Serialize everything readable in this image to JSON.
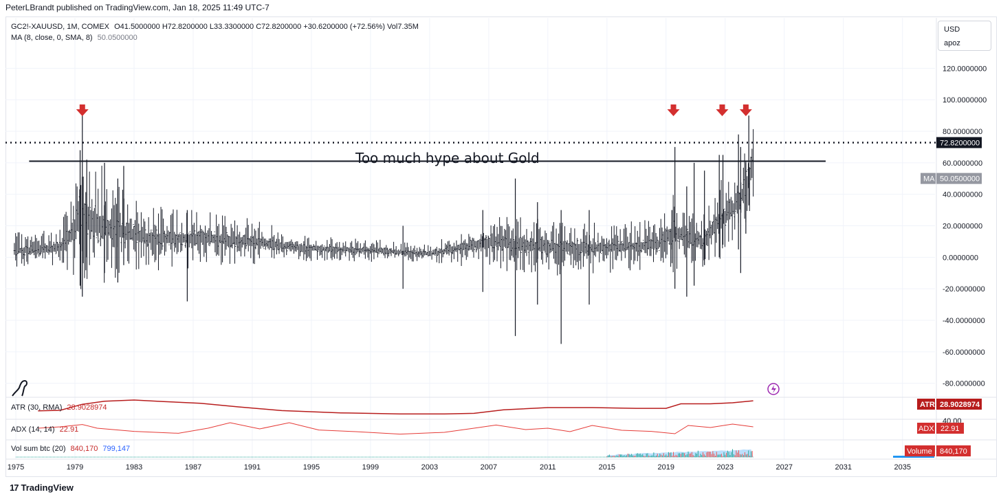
{
  "header": {
    "text": "PeterLBrandt published on TradingView.com, Jan 18, 2025 11:49 UTC-7"
  },
  "legend": {
    "symbol_line": "GC2!-XAUUSD, 1M, COMEX",
    "ohlc": "O41.5000000  H72.8200000  L33.3300000  C72.8200000  +30.6200000 (+72.56%)  Vol7.35M",
    "ma_label": "MA (8, close, 0, SMA, 8)",
    "ma_value": "50.0500000"
  },
  "scale_box": {
    "currency": "USD",
    "mode": "apoz"
  },
  "annotation": {
    "text": "Too much hype about Gold"
  },
  "price_tags": {
    "last": "72.8200000",
    "ma_tag": "MA",
    "ma": "50.0500000"
  },
  "indicators": {
    "atr": {
      "label": "ATR (30, RMA)",
      "value": "28.9028974",
      "tag": "ATR"
    },
    "adx": {
      "label": "ADX (14, 14)",
      "value": "22.91",
      "tag": "ADX",
      "axis_tick": "40.00"
    },
    "vol": {
      "label": "Vol sum btc (20)",
      "value1": "840,170",
      "value2": "799,147",
      "tag": "Volume",
      "tag_value": "840,170"
    }
  },
  "footer": {
    "brand": "TradingView",
    "logo": "17"
  },
  "colors": {
    "candle": "#131722",
    "arrow": "#d32f2f",
    "atr": "#b71c1c",
    "adx": "#e53935",
    "vol_blue": "#2196f3",
    "tag_red": "#d32f2f",
    "ma_tag_bg": "#9598a1"
  },
  "chart_data": {
    "type": "bar",
    "x_unit": "year",
    "x_range": [
      1974.3,
      2037.2
    ],
    "y_range": [
      -88,
      152
    ],
    "y_ticks": [
      "120.0000000",
      "100.0000000",
      "80.0000000",
      "60.0000000",
      "40.0000000",
      "20.0000000",
      "0.0000000",
      "-20.0000000",
      "-40.0000000",
      "-60.0000000",
      "-80.0000000"
    ],
    "y_tick_values": [
      120,
      100,
      80,
      60,
      40,
      20,
      0,
      -20,
      -40,
      -60,
      -80
    ],
    "x_ticks": [
      "1975",
      "1979",
      "1983",
      "1987",
      "1991",
      "1995",
      "1999",
      "2003",
      "2007",
      "2011",
      "2015",
      "2019",
      "2023",
      "2027",
      "2031",
      "2035"
    ],
    "x_tick_values": [
      1975,
      1979,
      1983,
      1987,
      1991,
      1995,
      1999,
      2003,
      2007,
      2011,
      2015,
      2019,
      2023,
      2027,
      2031,
      2035
    ],
    "last_close": 72.82,
    "ma_value": 50.05,
    "horizontal_line": {
      "value": 61,
      "x_start": 1975.9,
      "x_end": 2029.8
    },
    "arrows_at": [
      1979.5,
      2019.5,
      2022.8,
      2024.4
    ],
    "anchors": [
      {
        "t": 1974.9,
        "c": 4,
        "a": 10
      },
      {
        "t": 1978.0,
        "c": 6,
        "a": 12
      },
      {
        "t": 1979.0,
        "c": 18,
        "a": 30
      },
      {
        "t": 1979.4,
        "c": 30,
        "a": 45
      },
      {
        "t": 1980.3,
        "c": 22,
        "a": 38
      },
      {
        "t": 1981.5,
        "c": 18,
        "a": 28
      },
      {
        "t": 1984.0,
        "c": 12,
        "a": 18
      },
      {
        "t": 1988.0,
        "c": 12,
        "a": 16
      },
      {
        "t": 1991.0,
        "c": 10,
        "a": 14
      },
      {
        "t": 1994.0,
        "c": 6,
        "a": 8
      },
      {
        "t": 2000.0,
        "c": 4,
        "a": 6
      },
      {
        "t": 2003.0,
        "c": 2,
        "a": 5
      },
      {
        "t": 2005.0,
        "c": 6,
        "a": 10
      },
      {
        "t": 2007.0,
        "c": 10,
        "a": 14
      },
      {
        "t": 2009.0,
        "c": 8,
        "a": 16
      },
      {
        "t": 2012.0,
        "c": 6,
        "a": 16
      },
      {
        "t": 2015.0,
        "c": 6,
        "a": 14
      },
      {
        "t": 2018.5,
        "c": 8,
        "a": 14
      },
      {
        "t": 2019.5,
        "c": 16,
        "a": 24
      },
      {
        "t": 2021.5,
        "c": 10,
        "a": 14
      },
      {
        "t": 2022.5,
        "c": 22,
        "a": 22
      },
      {
        "t": 2023.5,
        "c": 30,
        "a": 22
      },
      {
        "t": 2024.3,
        "c": 42,
        "a": 25
      },
      {
        "t": 2024.9,
        "c": 60,
        "a": 30
      }
    ],
    "spikes": [
      {
        "t": 1979.5,
        "hi": 90,
        "lo": -25
      },
      {
        "t": 1979.35,
        "hi": 68,
        "lo": -18
      },
      {
        "t": 1979.8,
        "hi": 62,
        "lo": 0
      },
      {
        "t": 1981.0,
        "hi": 60,
        "lo": -10
      },
      {
        "t": 1982.3,
        "hi": 58,
        "lo": -5
      },
      {
        "t": 1981.9,
        "hi": 50,
        "lo": -16
      },
      {
        "t": 1986.6,
        "hi": 30,
        "lo": -28
      },
      {
        "t": 2008.8,
        "hi": 50,
        "lo": -50
      },
      {
        "t": 2011.9,
        "hi": 30,
        "lo": -55
      },
      {
        "t": 2010.3,
        "hi": 35,
        "lo": -30
      },
      {
        "t": 2013.8,
        "hi": 30,
        "lo": -30
      },
      {
        "t": 2001.2,
        "hi": 20,
        "lo": -20
      },
      {
        "t": 2006.6,
        "hi": 30,
        "lo": -22
      },
      {
        "t": 2019.6,
        "hi": 70,
        "lo": -20
      },
      {
        "t": 2019.4,
        "hi": 30,
        "lo": 5
      },
      {
        "t": 2020.9,
        "hi": 60,
        "lo": -18
      },
      {
        "t": 2020.4,
        "hi": 45,
        "lo": -25
      },
      {
        "t": 2021.6,
        "hi": 55,
        "lo": -5
      },
      {
        "t": 2022.6,
        "hi": 65,
        "lo": 0
      },
      {
        "t": 2022.85,
        "hi": 65,
        "lo": 8
      },
      {
        "t": 2023.9,
        "hi": 78,
        "lo": 5
      },
      {
        "t": 2024.05,
        "hi": 70,
        "lo": -10
      },
      {
        "t": 2024.4,
        "hi": 60,
        "lo": 15
      },
      {
        "t": 2024.6,
        "hi": 90,
        "lo": 33
      }
    ],
    "atr_series": [
      {
        "t": 1976.5,
        "v": 0.28
      },
      {
        "t": 1978.0,
        "v": 0.32
      },
      {
        "t": 1979.5,
        "v": 0.72
      },
      {
        "t": 1981.0,
        "v": 0.92
      },
      {
        "t": 1983.0,
        "v": 1.0
      },
      {
        "t": 1985.0,
        "v": 0.9
      },
      {
        "t": 1987.5,
        "v": 0.78
      },
      {
        "t": 1990.0,
        "v": 0.55
      },
      {
        "t": 1993.0,
        "v": 0.3
      },
      {
        "t": 1997.0,
        "v": 0.15
      },
      {
        "t": 2001.0,
        "v": 0.08
      },
      {
        "t": 2004.0,
        "v": 0.08
      },
      {
        "t": 2006.0,
        "v": 0.12
      },
      {
        "t": 2008.0,
        "v": 0.35
      },
      {
        "t": 2011.0,
        "v": 0.5
      },
      {
        "t": 2014.0,
        "v": 0.5
      },
      {
        "t": 2017.0,
        "v": 0.45
      },
      {
        "t": 2019.0,
        "v": 0.45
      },
      {
        "t": 2020.0,
        "v": 0.75
      },
      {
        "t": 2022.0,
        "v": 0.75
      },
      {
        "t": 2023.5,
        "v": 0.82
      },
      {
        "t": 2024.9,
        "v": 0.95
      }
    ],
    "adx_series": [
      {
        "t": 1976.5,
        "v": 0.55
      },
      {
        "t": 1978.0,
        "v": 0.65
      },
      {
        "t": 1979.5,
        "v": 0.82
      },
      {
        "t": 1980.5,
        "v": 0.55
      },
      {
        "t": 1983.0,
        "v": 0.32
      },
      {
        "t": 1986.0,
        "v": 0.18
      },
      {
        "t": 1988.0,
        "v": 0.55
      },
      {
        "t": 1989.5,
        "v": 0.95
      },
      {
        "t": 1991.5,
        "v": 0.5
      },
      {
        "t": 1993.5,
        "v": 0.95
      },
      {
        "t": 1995.5,
        "v": 0.42
      },
      {
        "t": 1998.0,
        "v": 0.3
      },
      {
        "t": 2001.0,
        "v": 0.12
      },
      {
        "t": 2004.0,
        "v": 0.25
      },
      {
        "t": 2006.0,
        "v": 0.55
      },
      {
        "t": 2007.5,
        "v": 0.78
      },
      {
        "t": 2009.5,
        "v": 0.45
      },
      {
        "t": 2011.0,
        "v": 0.55
      },
      {
        "t": 2012.5,
        "v": 0.3
      },
      {
        "t": 2014.0,
        "v": 0.75
      },
      {
        "t": 2016.0,
        "v": 0.4
      },
      {
        "t": 2018.0,
        "v": 0.32
      },
      {
        "t": 2019.6,
        "v": 0.15
      },
      {
        "t": 2020.5,
        "v": 0.75
      },
      {
        "t": 2022.0,
        "v": 0.6
      },
      {
        "t": 2023.5,
        "v": 0.85
      },
      {
        "t": 2024.9,
        "v": 0.65
      }
    ],
    "volume_start": 2015.0,
    "volume_end": 2024.9
  }
}
